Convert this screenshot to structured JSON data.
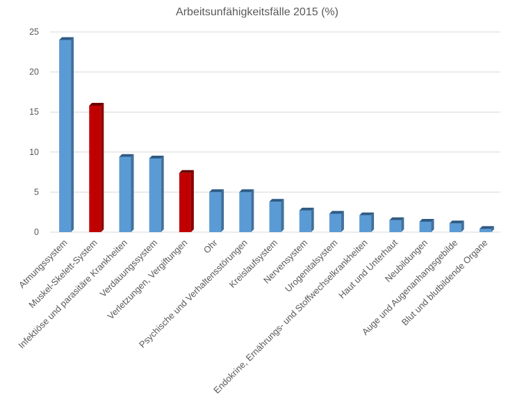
{
  "chart_data": {
    "type": "bar",
    "title": "Arbeitsunfähigkeitsfälle 2015 (%)",
    "xlabel": "",
    "ylabel": "",
    "ylim": [
      0,
      25
    ],
    "yticks": [
      0,
      5,
      10,
      15,
      20,
      25
    ],
    "grid": true,
    "legend": "none",
    "categories": [
      "Atmungssystem",
      "Muskel-Skelett-System",
      "Infektiöse und parasitäre Krankheiten",
      "Verdauungssystem",
      "Verletzungen, Vergiftungen",
      "Ohr",
      "Psychische und Verhaltensstörungen",
      "Kreislaufsystem",
      "Nervensystem",
      "Urogenitalsystem",
      "Endokrine, Ernährungs- und Stoffwechselkrankheiten",
      "Haut und Unterhaut",
      "Neubildungen",
      "Auge und Augenanhangsgebilde",
      "Blut und blutbildende Organe"
    ],
    "values": [
      24.0,
      15.8,
      9.4,
      9.2,
      7.4,
      5.0,
      5.0,
      3.8,
      2.7,
      2.3,
      2.1,
      1.5,
      1.3,
      1.1,
      0.4
    ],
    "highlighted": [
      false,
      true,
      false,
      false,
      true,
      false,
      false,
      false,
      false,
      false,
      false,
      false,
      false,
      false,
      false
    ],
    "colors": {
      "bar": "#5b9bd5",
      "bar_side": "#41719c",
      "bar_top": "#2e5b86",
      "highlight": "#c00000",
      "highlight_side": "#8b0000",
      "highlight_top": "#6b0000"
    }
  }
}
